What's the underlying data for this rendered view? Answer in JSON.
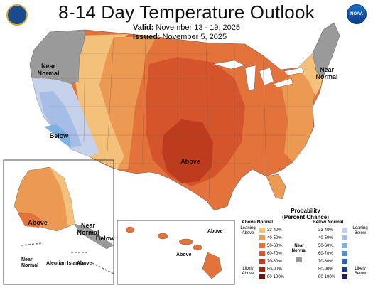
{
  "header": {
    "title": "8-14 Day Temperature Outlook",
    "valid_label": "Valid:",
    "valid_value": "November 13 - 19, 2025",
    "issued_label": "Issued:",
    "issued_value": "November 5, 2025",
    "left_logo": "doc-seal-icon",
    "right_logo": "noaa-logo-icon",
    "noaa_text": "NOAA"
  },
  "map_labels": {
    "near_normal_nw": "Near\nNormal",
    "near_normal_ne": "Near\nNormal",
    "below_ca": "Below",
    "above_center": "Above",
    "above_alaska": "Above",
    "near_normal_ak": "Near\nNormal",
    "below_ak": "Below",
    "near_normal_aleut": "Near\nNormal",
    "aleutian_islands": "Aleutian Islands",
    "above_aleut": "Above",
    "above_hawaii_1": "Above",
    "above_hawaii_2": "Above"
  },
  "legend": {
    "title": "Probability\n(Percent Chance)",
    "above_title": "Above Normal",
    "below_title": "Below Normal",
    "near_normal": "Near\nNormal",
    "leaning_above": "Leaning\nAbove",
    "likely_above": "Likely\nAbove",
    "leaning_below": "Leaning\nBelow",
    "likely_below": "Likely\nBelow",
    "ranges": [
      "33-40%",
      "40-50%",
      "50-60%",
      "60-70%",
      "70-80%",
      "80-90%",
      "90-100%"
    ],
    "above_colors": [
      "#f3c17a",
      "#ec9a53",
      "#e3733a",
      "#d4542c",
      "#be3b1d",
      "#9c2614",
      "#6e130a"
    ],
    "below_colors": [
      "#c6d2ec",
      "#a6bee6",
      "#7fb0e2",
      "#4f8fcf",
      "#2b63b0",
      "#1f3b86",
      "#28195c"
    ],
    "near_color": "#9a9a9a"
  }
}
